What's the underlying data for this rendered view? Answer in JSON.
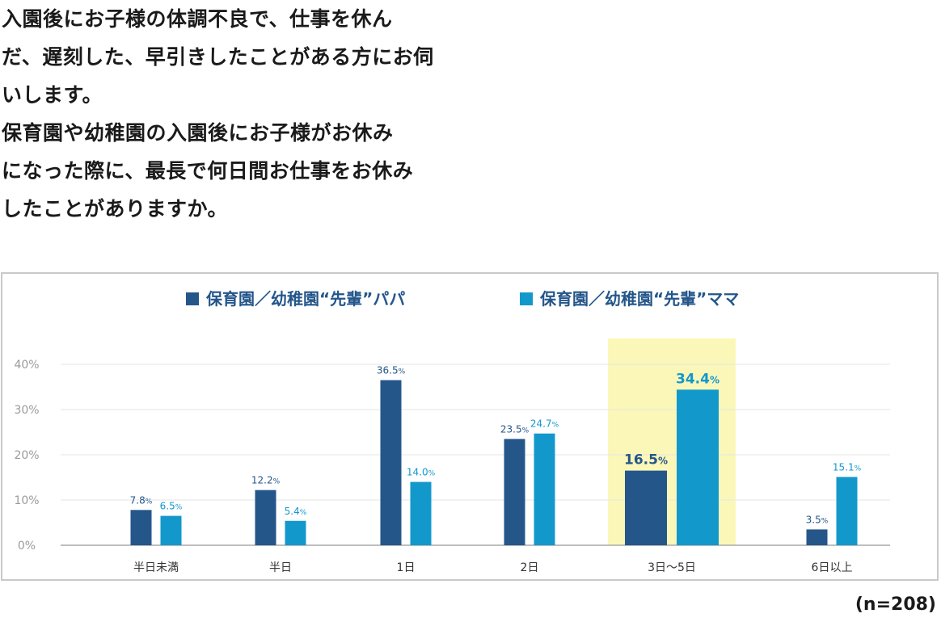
{
  "question_lines": [
    "入園後にお子様の体調不良で、仕事を休ん",
    "だ、遅刻した、早引きしたことがある方にお伺",
    "いします。",
    "保育園や幼稚園の入園後にお子様がお休み",
    "になった際に、最長で何日間お仕事をお休み",
    "したことがありますか。"
  ],
  "sample_size": "(n=208)",
  "colors": {
    "papa": "#24568a",
    "mama": "#1398cc",
    "highlight": "#fbf7b8",
    "grid": "#e6e6e6",
    "axis": "#a9a9a9",
    "tick": "#9a9a9a"
  },
  "chart_data": {
    "type": "bar",
    "categories": [
      "半日未満",
      "半日",
      "1日",
      "2日",
      "3日～5日",
      "6日以上"
    ],
    "series": [
      {
        "name": "保育園／幼稚園“先輩”パパ",
        "values": [
          7.8,
          12.2,
          36.5,
          23.5,
          16.5,
          3.5
        ],
        "labels": [
          "7.8%",
          "12.2%",
          "36.5%",
          "23.5%",
          "16.5%",
          "3.5%"
        ]
      },
      {
        "name": "保育園／幼稚園“先輩”ママ",
        "values": [
          6.5,
          5.4,
          14.0,
          24.7,
          34.4,
          15.1
        ],
        "labels": [
          "6.5%",
          "5.4%",
          "14.0%",
          "24.7%",
          "34.4%",
          "15.1%"
        ]
      }
    ],
    "yticks": [
      "0%",
      "10%",
      "20%",
      "30%",
      "40%"
    ],
    "ylim": [
      0,
      40
    ],
    "highlight_category": "3日～5日",
    "legend_position": "top"
  }
}
